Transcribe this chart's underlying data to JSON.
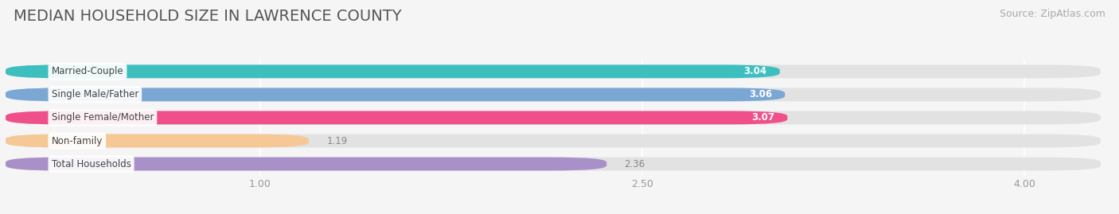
{
  "title": "MEDIAN HOUSEHOLD SIZE IN LAWRENCE COUNTY",
  "source": "Source: ZipAtlas.com",
  "categories": [
    "Married-Couple",
    "Single Male/Father",
    "Single Female/Mother",
    "Non-family",
    "Total Households"
  ],
  "values": [
    3.04,
    3.06,
    3.07,
    1.19,
    2.36
  ],
  "bar_colors": [
    "#3DBFBF",
    "#7BA7D4",
    "#F0508A",
    "#F5C896",
    "#A990C8"
  ],
  "value_colors": [
    "white",
    "white",
    "white",
    "#888888",
    "#888888"
  ],
  "xlim_min": 0,
  "xlim_max": 4.35,
  "xticks": [
    1.0,
    2.5,
    4.0
  ],
  "xtick_labels": [
    "1.00",
    "2.50",
    "4.00"
  ],
  "background_color": "#f5f5f5",
  "bg_bar_color": "#e2e2e2",
  "title_fontsize": 14,
  "source_fontsize": 9,
  "bar_height": 0.58,
  "value_fontsize": 8.5,
  "category_fontsize": 8.5
}
